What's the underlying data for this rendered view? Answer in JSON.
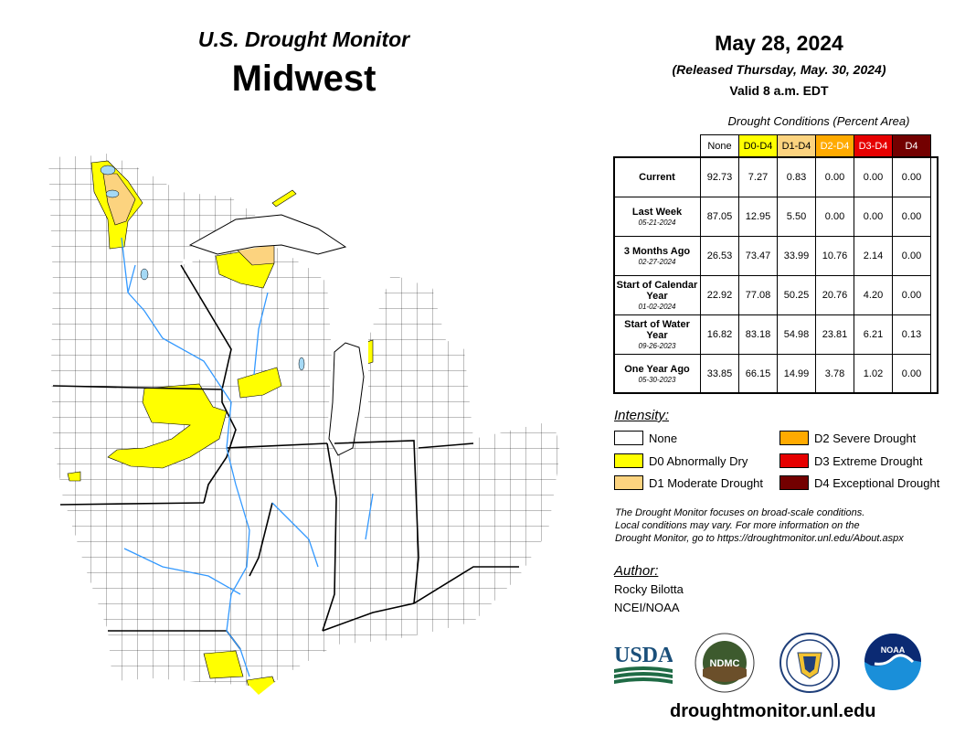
{
  "header": {
    "subtitle": "U.S. Drought Monitor",
    "region": "Midwest",
    "date": "May 28, 2024",
    "released": "(Released Thursday, May. 30, 2024)",
    "valid": "Valid 8 a.m. EDT"
  },
  "table": {
    "caption": "Drought Conditions (Percent Area)",
    "columns": [
      {
        "label": "None",
        "color": "#ffffff",
        "text_color": "#000000"
      },
      {
        "label": "D0-D4",
        "color": "#ffff00",
        "text_color": "#000000"
      },
      {
        "label": "D1-D4",
        "color": "#fcd37f",
        "text_color": "#000000"
      },
      {
        "label": "D2-D4",
        "color": "#ffaa00",
        "text_color": "#ffffff"
      },
      {
        "label": "D3-D4",
        "color": "#e60000",
        "text_color": "#ffffff"
      },
      {
        "label": "D4",
        "color": "#730000",
        "text_color": "#ffffff"
      }
    ],
    "rows": [
      {
        "label": "Current",
        "date": "",
        "values": [
          "92.73",
          "7.27",
          "0.83",
          "0.00",
          "0.00",
          "0.00"
        ]
      },
      {
        "label": "Last Week",
        "date": "05-21-2024",
        "values": [
          "87.05",
          "12.95",
          "5.50",
          "0.00",
          "0.00",
          "0.00"
        ]
      },
      {
        "label": "3 Months Ago",
        "date": "02-27-2024",
        "values": [
          "26.53",
          "73.47",
          "33.99",
          "10.76",
          "2.14",
          "0.00"
        ]
      },
      {
        "label": "Start of Calendar Year",
        "date": "01-02-2024",
        "values": [
          "22.92",
          "77.08",
          "50.25",
          "20.76",
          "4.20",
          "0.00"
        ]
      },
      {
        "label": "Start of Water Year",
        "date": "09-26-2023",
        "values": [
          "16.82",
          "83.18",
          "54.98",
          "23.81",
          "6.21",
          "0.13"
        ]
      },
      {
        "label": "One Year Ago",
        "date": "05-30-2023",
        "values": [
          "33.85",
          "66.15",
          "14.99",
          "3.78",
          "1.02",
          "0.00"
        ]
      }
    ]
  },
  "legend": {
    "title": "Intensity:",
    "items": [
      {
        "label": "None",
        "color": "#ffffff"
      },
      {
        "label": "D0 Abnormally Dry",
        "color": "#ffff00"
      },
      {
        "label": "D1 Moderate Drought",
        "color": "#fcd37f"
      },
      {
        "label": "D2 Severe Drought",
        "color": "#ffaa00"
      },
      {
        "label": "D3 Extreme Drought",
        "color": "#e60000"
      },
      {
        "label": "D4 Exceptional Drought",
        "color": "#730000"
      }
    ]
  },
  "note": {
    "line1": "The Drought Monitor focuses on broad-scale conditions.",
    "line2": "Local conditions may vary. For more information on the",
    "line3": "Drought Monitor, go to https://droughtmonitor.unl.edu/About.aspx"
  },
  "author": {
    "title": "Author:",
    "name": "Rocky Bilotta",
    "org": "NCEI/NOAA"
  },
  "logos": {
    "usda": "USDA",
    "ndmc": "NDMC",
    "noaa": "NOAA"
  },
  "footer": {
    "url": "droughtmonitor.unl.edu"
  }
}
